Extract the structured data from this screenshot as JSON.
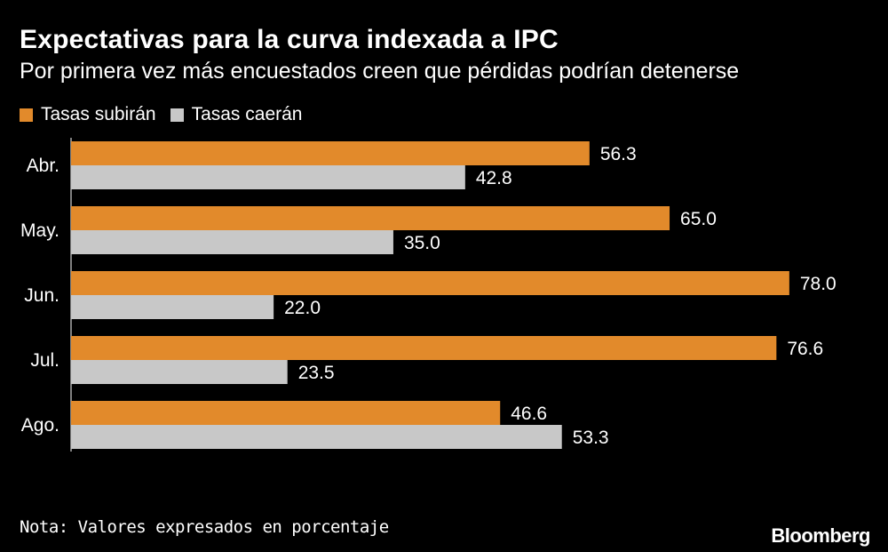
{
  "header": {
    "title": "Expectativas para la curva indexada a IPC",
    "subtitle": "Por primera vez más encuestados creen que pérdidas podrían detenerse"
  },
  "footer": {
    "note": "Nota: Valores expresados en porcentaje",
    "brand": "Bloomberg"
  },
  "colors": {
    "background": "#000000",
    "series_up": "#e28a2b",
    "series_down": "#c8c8c8",
    "text": "#ffffff"
  },
  "chart_data": {
    "type": "bar",
    "orientation": "horizontal",
    "title": "Expectativas para la curva indexada a IPC",
    "subtitle": "Por primera vez más encuestados creen que pérdidas podrían detenerse",
    "categories": [
      "Abr.",
      "May.",
      "Jun.",
      "Jul.",
      "Ago."
    ],
    "series": [
      {
        "name": "Tasas subirán",
        "color": "#e28a2b",
        "values": [
          56.3,
          65.0,
          78.0,
          76.6,
          46.6
        ]
      },
      {
        "name": "Tasas caerán",
        "color": "#c8c8c8",
        "values": [
          42.8,
          35.0,
          22.0,
          23.5,
          53.3
        ]
      }
    ],
    "value_labels": [
      [
        "56.3",
        "65.0",
        "78.0",
        "76.6",
        "46.6"
      ],
      [
        "42.8",
        "35.0",
        "22.0",
        "23.5",
        "53.3"
      ]
    ],
    "xlim": [
      0,
      100
    ],
    "grid": false,
    "legend_position": "top-left",
    "xlabel": "",
    "ylabel": ""
  }
}
